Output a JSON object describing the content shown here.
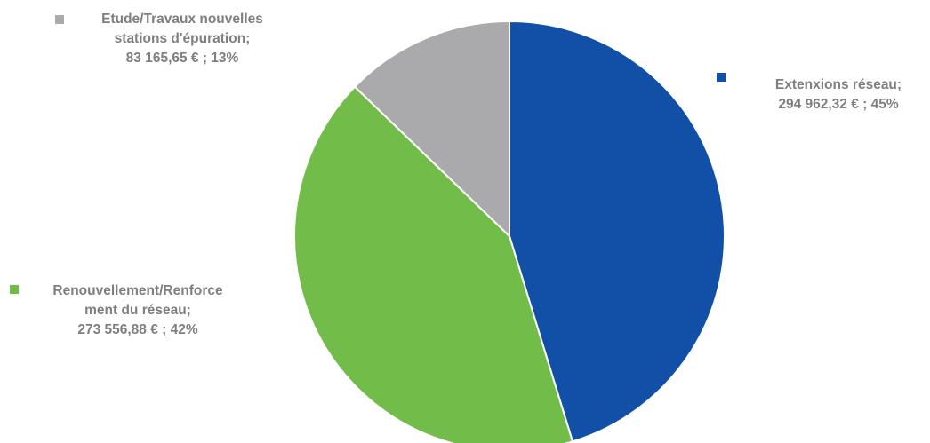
{
  "chart_data": {
    "type": "pie",
    "title": "",
    "slices": [
      {
        "category": "Extenxions réseau",
        "value": 294962.32,
        "percent": 45,
        "color": "#1150A6",
        "label_lines": [
          "Extenxions réseau;",
          "294 962,32 € ; 45%"
        ]
      },
      {
        "category": "Renouvellement/Renforcement du réseau",
        "value": 273556.88,
        "percent": 42,
        "color": "#72BC49",
        "label_lines": [
          "Renouvellement/Renforce",
          "ment du réseau;",
          "273 556,88 € ; 42%"
        ]
      },
      {
        "category": "Etude/Travaux nouvelles stations d'épuration",
        "value": 83165.65,
        "percent": 13,
        "color": "#AAAAAD",
        "label_lines": [
          "Etude/Travaux nouvelles",
          "stations d'épuration;",
          "83 165,65 € ; 13%"
        ]
      }
    ],
    "legend_position": "labels next to slices"
  }
}
